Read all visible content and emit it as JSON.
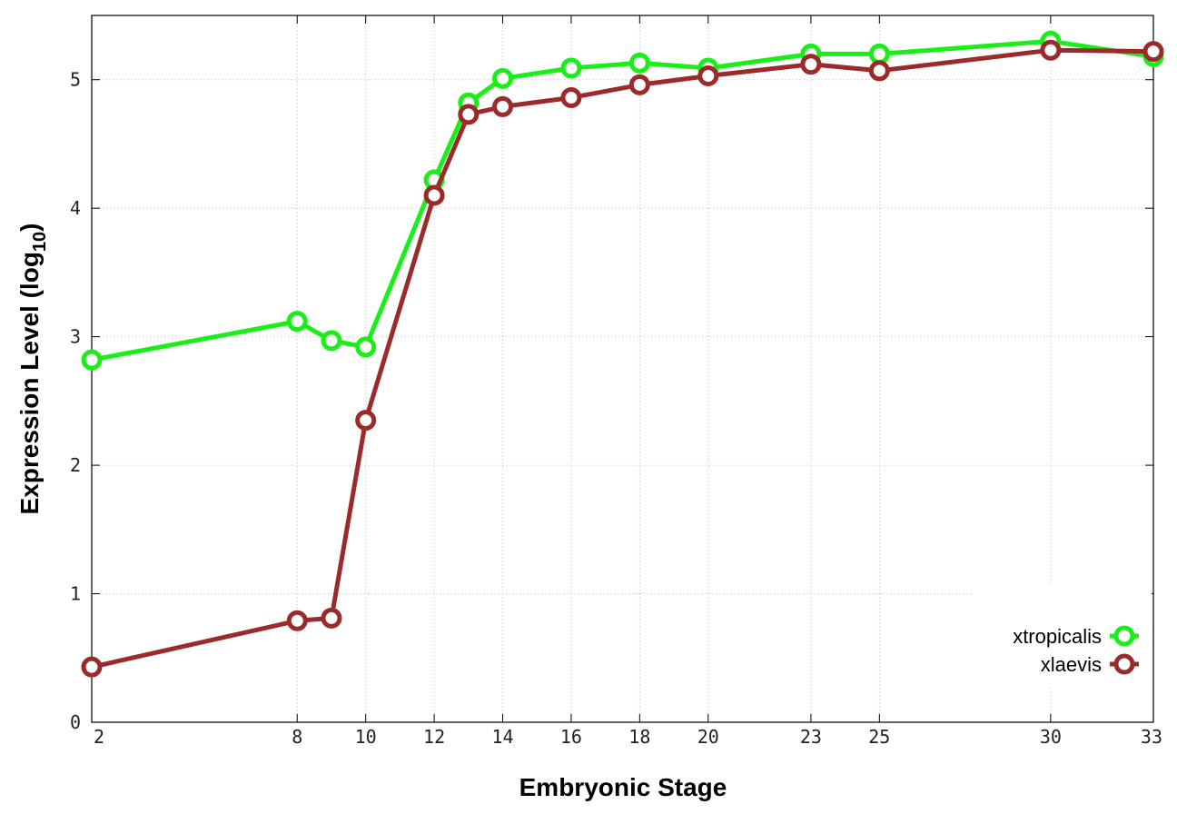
{
  "chart_data": {
    "type": "line",
    "xlabel": "Embryonic Stage",
    "ylabel_main": "Expression Level (log",
    "ylabel_sub": "10",
    "ylabel_close": ")",
    "x_ticks": [
      2,
      8,
      10,
      12,
      14,
      16,
      18,
      20,
      23,
      25,
      30,
      33
    ],
    "x_tick_positions": [
      2,
      8,
      10,
      12,
      14,
      16,
      18,
      20,
      23,
      25,
      30,
      33
    ],
    "y_ticks": [
      0,
      1,
      2,
      3,
      4,
      5
    ],
    "xlim": [
      2,
      33
    ],
    "ylim": [
      0,
      5.5
    ],
    "grid": true,
    "legend_position": "bottom-right",
    "series": [
      {
        "name": "xtropicalis",
        "color": "#19ee19",
        "x": [
          2,
          8,
          9,
          10,
          12,
          13,
          14,
          16,
          18,
          20,
          23,
          25,
          30,
          33
        ],
        "y": [
          2.82,
          3.12,
          2.97,
          2.92,
          4.22,
          4.82,
          5.01,
          5.09,
          5.13,
          5.09,
          5.2,
          5.2,
          5.3,
          5.18
        ]
      },
      {
        "name": "xlaevis",
        "color": "#9b2a2a",
        "x": [
          2,
          8,
          9,
          10,
          12,
          13,
          14,
          16,
          18,
          20,
          23,
          25,
          30,
          33
        ],
        "y": [
          0.43,
          0.79,
          0.81,
          2.35,
          4.1,
          4.73,
          4.79,
          4.86,
          4.96,
          5.03,
          5.12,
          5.07,
          5.23,
          5.22
        ]
      }
    ]
  }
}
